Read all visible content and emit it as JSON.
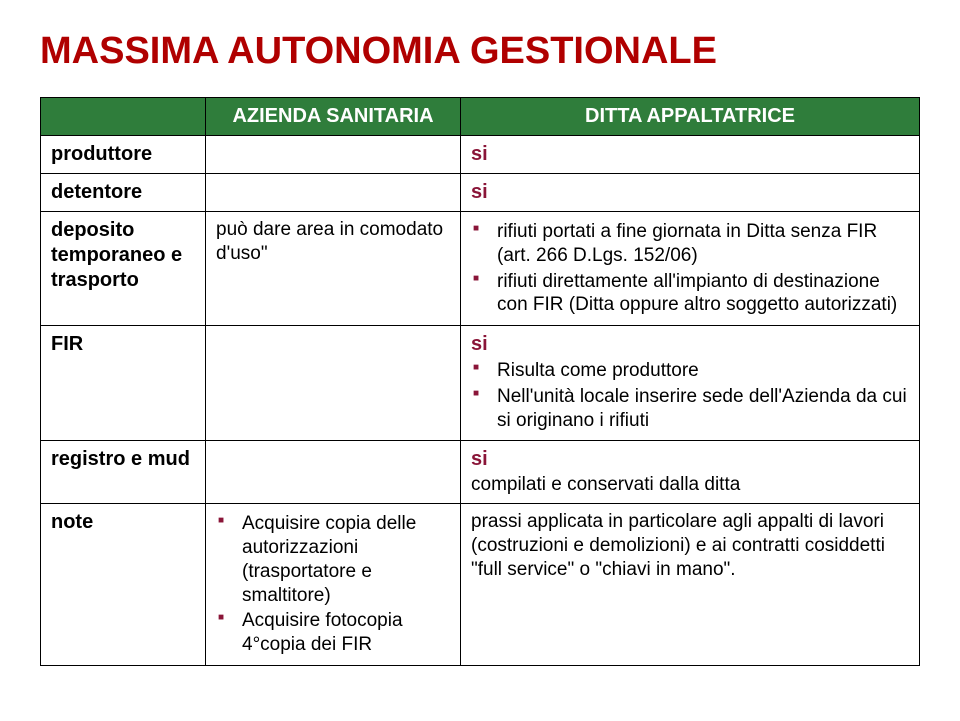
{
  "title": "MASSIMA AUTONOMIA GESTIONALE",
  "headers": {
    "col1": "",
    "col2": "AZIENDA SANITARIA",
    "col3": "DITTA APPALTATRICE"
  },
  "rows": {
    "produttore": {
      "label": "produttore",
      "c2": "",
      "c3_si": "si"
    },
    "detentore": {
      "label": "detentore",
      "c2": "",
      "c3_si": "si"
    },
    "deposito": {
      "label": "deposito temporaneo e trasporto",
      "c2": "può dare area in comodato d'uso\"",
      "c3_items": [
        "rifiuti portati a fine giornata in Ditta senza FIR (art. 266 D.Lgs. 152/06)",
        "rifiuti direttamente all'impianto di destinazione con FIR (Ditta oppure altro soggetto autorizzati)"
      ]
    },
    "fir": {
      "label": "FIR",
      "c2": "",
      "c3_si": "si",
      "c3_items": [
        "Risulta come produttore",
        "Nell'unità locale inserire sede dell'Azienda da cui si originano i rifiuti"
      ]
    },
    "registro": {
      "label": "registro e mud",
      "c2": "",
      "c3_si": "si",
      "c3_text": "compilati e conservati dalla ditta"
    },
    "note": {
      "label": "note",
      "c2_items": [
        "Acquisire copia delle autorizzazioni (trasportatore e smaltitore)",
        "Acquisire fotocopia 4°copia dei FIR"
      ],
      "c3_text": "prassi applicata in particolare agli appalti di lavori (costruzioni e demolizioni) e ai contratti cosiddetti \"full service\" o \"chiavi in mano\"."
    }
  }
}
